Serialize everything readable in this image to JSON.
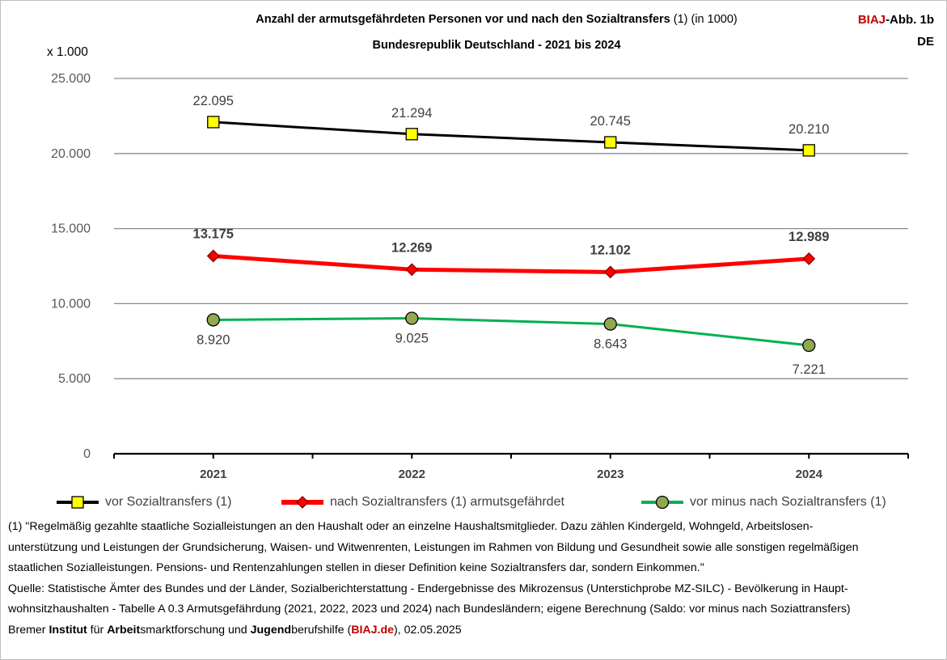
{
  "header": {
    "title_main": "Anzahl der armutsgefährdeten Personen vor und nach den Sozialtransfers",
    "title_note": "(1) (in 1000)",
    "subtitle": "Bundesrepublik Deutschland - 2021 bis 2024",
    "badge_brand": "BIAJ",
    "badge_rest": "-Abb. 1b",
    "badge_region": "DE"
  },
  "chart_data": {
    "type": "line",
    "units_label": "x 1.000",
    "categories": [
      "2021",
      "2022",
      "2023",
      "2024"
    ],
    "ylim": [
      0,
      25000
    ],
    "yticks": [
      0,
      5000,
      10000,
      15000,
      20000,
      25000
    ],
    "ytick_labels": [
      "0",
      "5.000",
      "10.000",
      "15.000",
      "20.000",
      "25.000"
    ],
    "grid": true,
    "legend_position": "bottom",
    "series": [
      {
        "name": "vor Sozialtransfers (1)",
        "values": [
          22095,
          21294,
          20745,
          20210
        ],
        "labels": [
          "22.095",
          "21.294",
          "20.745",
          "20.210"
        ],
        "color": "#000000",
        "marker": "square",
        "marker_color": "#ffff00"
      },
      {
        "name": "nach Sozialtransfers (1) armutsgefährdet",
        "values": [
          13175,
          12269,
          12102,
          12989
        ],
        "labels": [
          "13.175",
          "12.269",
          "12.102",
          "12.989"
        ],
        "color": "#ff0000",
        "marker": "diamond",
        "marker_color": "#ff0000"
      },
      {
        "name": "vor minus nach Sozialtransfers (1)",
        "values": [
          8920,
          9025,
          8643,
          7221
        ],
        "labels": [
          "8.920",
          "9.025",
          "8.643",
          "7.221"
        ],
        "color": "#00b050",
        "marker": "circle",
        "marker_color": "#92a850"
      }
    ]
  },
  "footnote": {
    "lines": [
      "(1) \"Regelmäßig gezahlte staatliche Sozialleistungen an den Haushalt oder an einzelne Haushaltsmitglieder. Dazu zählen Kindergeld, Wohngeld, Arbeitslosen-",
      "unterstützung und Leistungen der Grundsicherung, Waisen- und Witwenrenten, Leistungen im Rahmen von Bildung und Gesundheit sowie alle sonstigen regelmäßigen",
      "staatlichen Sozialleistungen. Pensions- und Rentenzahlungen stellen in dieser Definition keine Sozialtransfers dar, sondern Einkommen.\"",
      "Quelle: Statistische Ämter des Bundes und der Länder, Sozialberichterstattung - Endergebnisse des Mikrozensus (Unterstichprobe MZ-SILC) - Bevölkerung in Haupt-",
      "wohnsitzhaushalten - Tabelle A 0.3 Armutsgefährdung (2021, 2022, 2023 und 2024) nach Bundesländern; eigene Berechnung (Saldo: vor minus nach Soziattransfers)"
    ],
    "credit": {
      "p1": "Bremer ",
      "p2": "Institut",
      "p3": " für ",
      "p4": "Arbeit",
      "p5": "smarktforschung und ",
      "p6": "Jugend",
      "p7": "berufshilfe (",
      "p8": "BIAJ.de",
      "p9": "), 02.05.2025"
    }
  }
}
